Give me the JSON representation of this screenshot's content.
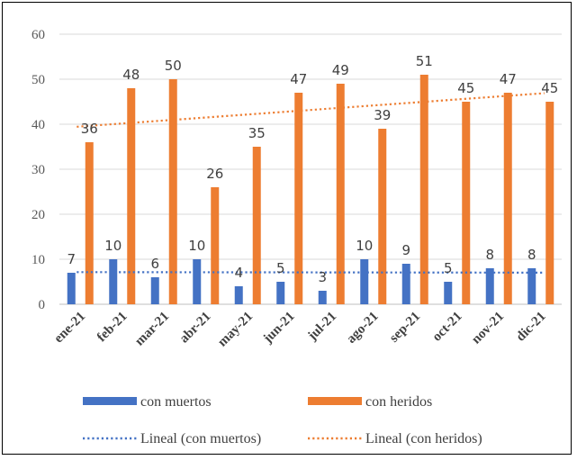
{
  "chart_data": {
    "type": "bar",
    "categories": [
      "ene-21",
      "feb-21",
      "mar-21",
      "abr-21",
      "may-21",
      "jun-21",
      "jul-21",
      "ago-21",
      "sep-21",
      "oct-21",
      "nov-21",
      "dic-21"
    ],
    "series": [
      {
        "name": "con muertos",
        "values": [
          7,
          10,
          6,
          10,
          4,
          5,
          3,
          10,
          9,
          5,
          8,
          8
        ],
        "color": "#4472C4"
      },
      {
        "name": "con heridos",
        "values": [
          36,
          48,
          50,
          26,
          35,
          47,
          49,
          39,
          51,
          45,
          47,
          45
        ],
        "color": "#ED7D31"
      }
    ],
    "trendlines": [
      {
        "name": "Lineal (con muertos)",
        "type": "linear",
        "series": "con muertos",
        "color": "#4472C4",
        "dash": "dotted"
      },
      {
        "name": "Lineal (con heridos)",
        "type": "linear",
        "series": "con heridos",
        "color": "#ED7D31",
        "dash": "dotted"
      }
    ],
    "title": "",
    "xlabel": "",
    "ylabel": "",
    "ylim": [
      0,
      60
    ],
    "yticks": [
      0,
      10,
      20,
      30,
      40,
      50,
      60
    ],
    "grid": "horizontal",
    "grid_color": "#D9D9D9",
    "legend_position": "bottom",
    "data_labels": true
  }
}
